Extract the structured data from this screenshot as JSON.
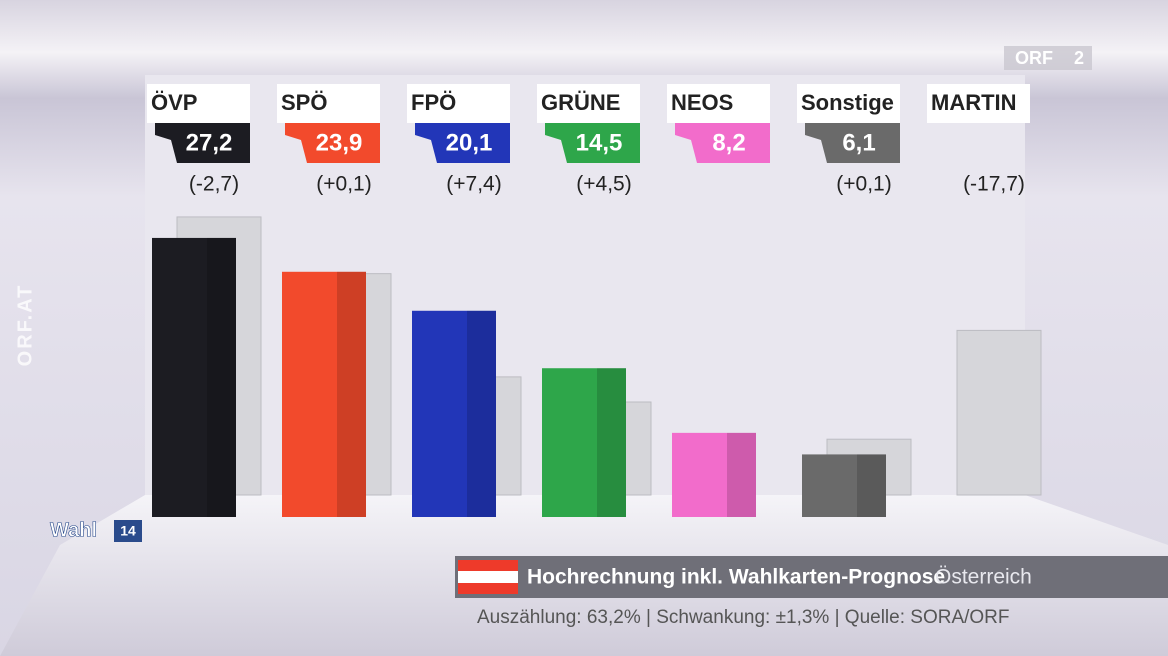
{
  "chart_data": {
    "type": "bar",
    "categories": [
      "ÖVP",
      "SPÖ",
      "FPÖ",
      "GRÜNE",
      "NEOS",
      "Sonstige",
      "MARTIN"
    ],
    "series": [
      {
        "colors": [
          "#1c1c22",
          "#f24a2c",
          "#2236b8",
          "#2ea64a",
          "#f26ccb",
          "#6a6a6a",
          null
        ],
        "values": [
          27.2,
          23.9,
          20.1,
          14.5,
          8.2,
          6.1,
          null
        ],
        "value_labels": [
          "27,2",
          "23,9",
          "20,1",
          "14,5",
          "8,2",
          "6,1",
          null
        ]
      },
      {
        "color": "#d6d6da",
        "values": [
          29.9,
          23.8,
          12.7,
          10.0,
          null,
          6.0,
          17.7
        ]
      }
    ],
    "changes": {
      "values": [
        -2.7,
        0.1,
        7.4,
        4.5,
        null,
        0.1,
        -17.7
      ],
      "value_labels": [
        "(-2,7)",
        "(+0,1)",
        "(+7,4)",
        "(+4,5)",
        null,
        "(+0,1)",
        "(-17,7)"
      ]
    }
  },
  "footer": {
    "title": "Hochrechnung inkl. Wahlkarten-Prognose",
    "region": "Österreich",
    "note": "Auszählung: 63,2% | Schwankung: ±1,3% | Quelle: SORA/ORF"
  },
  "branding": {
    "channel": "ORF",
    "channel_number": "2",
    "website": "ORF.AT",
    "show": "Wahl",
    "show_year": "14"
  }
}
